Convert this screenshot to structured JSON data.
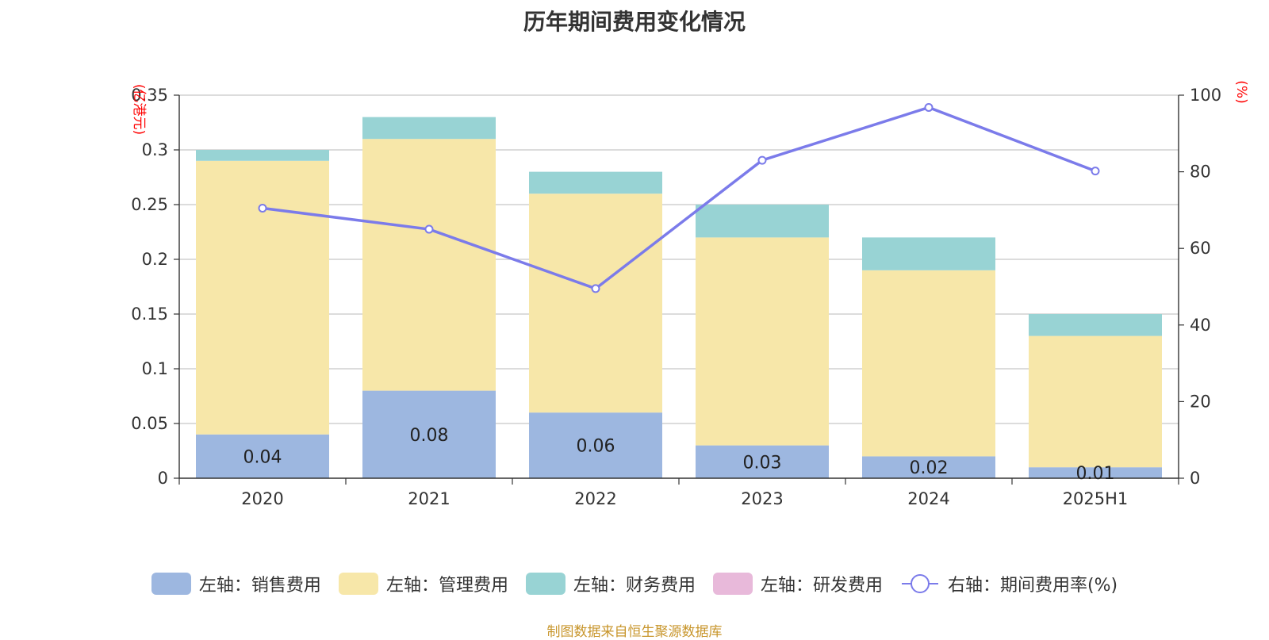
{
  "chart_data": {
    "type": "bar",
    "stacked": true,
    "title": "历年期间费用变化情况",
    "categories": [
      "2020",
      "2021",
      "2022",
      "2023",
      "2024",
      "2025H1"
    ],
    "left_axis": {
      "unit": "(亿港元)",
      "ylim": [
        0,
        0.35
      ],
      "ticks": [
        "0",
        "0.05",
        "0.1",
        "0.15",
        "0.2",
        "0.25",
        "0.3",
        "0.35"
      ],
      "tick_values": [
        0,
        0.05,
        0.1,
        0.15,
        0.2,
        0.25,
        0.3,
        0.35
      ]
    },
    "right_axis": {
      "unit": "(%)",
      "ylim": [
        0,
        100
      ],
      "ticks": [
        "0",
        "20",
        "40",
        "60",
        "80",
        "100"
      ],
      "tick_values": [
        0,
        20,
        40,
        60,
        80,
        100
      ]
    },
    "series": [
      {
        "name": "左轴：销售费用",
        "axis": "left",
        "type": "bar",
        "color": "#9db7e0",
        "values": [
          0.04,
          0.08,
          0.06,
          0.03,
          0.02,
          0.01
        ],
        "labels": [
          "0.04",
          "0.08",
          "0.06",
          "0.03",
          "0.02",
          "0.01"
        ]
      },
      {
        "name": "左轴：管理费用",
        "axis": "left",
        "type": "bar",
        "color": "#f7e7a9",
        "values": [
          0.25,
          0.23,
          0.2,
          0.19,
          0.17,
          0.12
        ]
      },
      {
        "name": "左轴：财务费用",
        "axis": "left",
        "type": "bar",
        "color": "#98d3d4",
        "values": [
          0.01,
          0.02,
          0.02,
          0.03,
          0.03,
          0.02
        ]
      },
      {
        "name": "左轴：研发费用",
        "axis": "left",
        "type": "bar",
        "color": "#e8b9da",
        "values": [
          0,
          0,
          0,
          0,
          0,
          0
        ]
      },
      {
        "name": "右轴：期间费用率(%)",
        "axis": "right",
        "type": "line",
        "color": "#7b7bea",
        "values": [
          70.5,
          65,
          49.5,
          83,
          96.8,
          80.2
        ]
      }
    ],
    "legend_position": "bottom",
    "grid": true
  },
  "source": "制图数据来自恒生聚源数据库"
}
